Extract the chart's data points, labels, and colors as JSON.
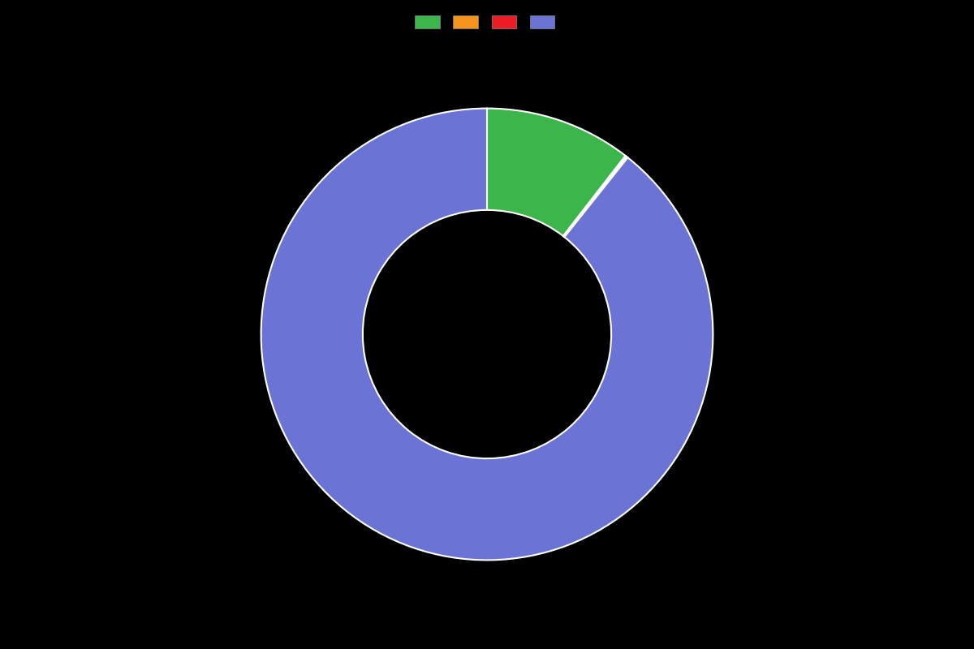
{
  "slices": [
    {
      "label": "",
      "value": 10.5,
      "color": "#3cb54a"
    },
    {
      "label": "",
      "value": 0.1,
      "color": "#f7941d"
    },
    {
      "label": "",
      "value": 0.1,
      "color": "#ed1c24"
    },
    {
      "label": "",
      "value": 89.3,
      "color": "#6b74d4"
    }
  ],
  "background_color": "#000000",
  "wedge_edge_color": "#ffffff",
  "wedge_linewidth": 1.5,
  "donut_width": 0.45,
  "legend_colors": [
    "#3cb54a",
    "#f7941d",
    "#ed1c24",
    "#6b74d4"
  ],
  "legend_labels": [
    "",
    "",
    "",
    ""
  ],
  "startangle": 90,
  "figsize": [
    12,
    8
  ],
  "dpi": 100
}
